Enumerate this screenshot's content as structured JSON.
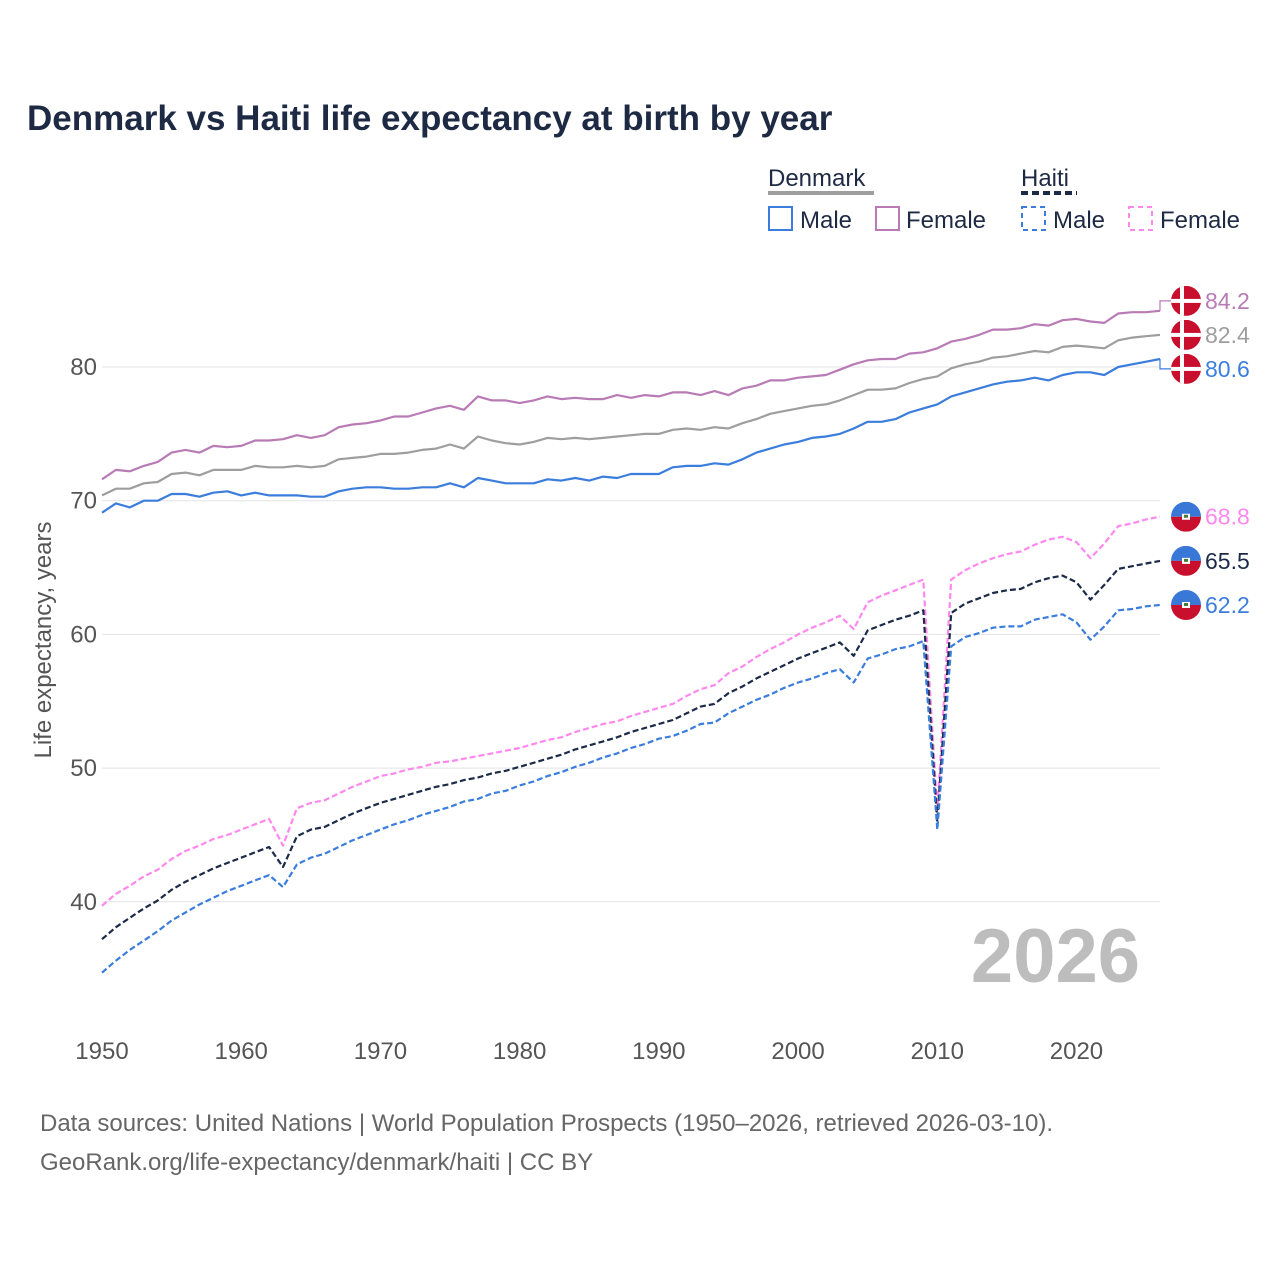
{
  "chart_data": {
    "type": "line",
    "title": "Denmark vs Haiti life expectancy at birth by year",
    "xlabel": "",
    "ylabel": "Life expectancy, years",
    "xlim": [
      1950,
      2026
    ],
    "ylim": [
      33,
      87
    ],
    "x_ticks": [
      1950,
      1960,
      1970,
      1980,
      1990,
      2000,
      2010,
      2020
    ],
    "y_ticks": [
      40,
      50,
      60,
      70,
      80
    ],
    "grid": true,
    "current_year_label": "2026",
    "legend": {
      "placement": "top-right",
      "groups": [
        {
          "name": "Denmark",
          "items": [
            "Male",
            "Female"
          ]
        },
        {
          "name": "Haiti",
          "items": [
            "Male",
            "Female"
          ]
        }
      ]
    },
    "x": [
      1950,
      1951,
      1952,
      1953,
      1954,
      1955,
      1956,
      1957,
      1958,
      1959,
      1960,
      1961,
      1962,
      1963,
      1964,
      1965,
      1966,
      1967,
      1968,
      1969,
      1970,
      1971,
      1972,
      1973,
      1974,
      1975,
      1976,
      1977,
      1978,
      1979,
      1980,
      1981,
      1982,
      1983,
      1984,
      1985,
      1986,
      1987,
      1988,
      1989,
      1990,
      1991,
      1992,
      1993,
      1994,
      1995,
      1996,
      1997,
      1998,
      1999,
      2000,
      2001,
      2002,
      2003,
      2004,
      2005,
      2006,
      2007,
      2008,
      2009,
      2010,
      2011,
      2012,
      2013,
      2014,
      2015,
      2016,
      2017,
      2018,
      2019,
      2020,
      2021,
      2022,
      2023,
      2024,
      2025,
      2026
    ],
    "series": [
      {
        "name": "Denmark Female",
        "country": "Denmark",
        "sex": "Female",
        "color": "#b87bb5",
        "dashed": false,
        "end_label": "84.2",
        "values": [
          71.6,
          72.3,
          72.2,
          72.6,
          72.9,
          73.6,
          73.8,
          73.6,
          74.1,
          74.0,
          74.1,
          74.5,
          74.5,
          74.6,
          74.9,
          74.7,
          74.9,
          75.5,
          75.7,
          75.8,
          76.0,
          76.3,
          76.3,
          76.6,
          76.9,
          77.1,
          76.8,
          77.8,
          77.5,
          77.5,
          77.3,
          77.5,
          77.8,
          77.6,
          77.7,
          77.6,
          77.6,
          77.9,
          77.7,
          77.9,
          77.8,
          78.1,
          78.1,
          77.9,
          78.2,
          77.9,
          78.4,
          78.6,
          79.0,
          79.0,
          79.2,
          79.3,
          79.4,
          79.8,
          80.2,
          80.5,
          80.6,
          80.6,
          81.0,
          81.1,
          81.4,
          81.9,
          82.1,
          82.4,
          82.8,
          82.8,
          82.9,
          83.2,
          83.1,
          83.5,
          83.6,
          83.4,
          83.3,
          84.0,
          84.1,
          84.1,
          84.2
        ]
      },
      {
        "name": "Denmark Total",
        "country": "Denmark",
        "sex": "Total",
        "color": "#9e9e9e",
        "dashed": false,
        "end_label": "82.4",
        "values": [
          70.4,
          70.9,
          70.9,
          71.3,
          71.4,
          72.0,
          72.1,
          71.9,
          72.3,
          72.3,
          72.3,
          72.6,
          72.5,
          72.5,
          72.6,
          72.5,
          72.6,
          73.1,
          73.2,
          73.3,
          73.5,
          73.5,
          73.6,
          73.8,
          73.9,
          74.2,
          73.9,
          74.8,
          74.5,
          74.3,
          74.2,
          74.4,
          74.7,
          74.6,
          74.7,
          74.6,
          74.7,
          74.8,
          74.9,
          75.0,
          75.0,
          75.3,
          75.4,
          75.3,
          75.5,
          75.4,
          75.8,
          76.1,
          76.5,
          76.7,
          76.9,
          77.1,
          77.2,
          77.5,
          77.9,
          78.3,
          78.3,
          78.4,
          78.8,
          79.1,
          79.3,
          79.9,
          80.2,
          80.4,
          80.7,
          80.8,
          81.0,
          81.2,
          81.1,
          81.5,
          81.6,
          81.5,
          81.4,
          82.0,
          82.2,
          82.3,
          82.4
        ]
      },
      {
        "name": "Denmark Male",
        "country": "Denmark",
        "sex": "Male",
        "color": "#3b7ddd",
        "dashed": false,
        "end_label": "80.6",
        "values": [
          69.1,
          69.8,
          69.5,
          70.0,
          70.0,
          70.5,
          70.5,
          70.3,
          70.6,
          70.7,
          70.4,
          70.6,
          70.4,
          70.4,
          70.4,
          70.3,
          70.3,
          70.7,
          70.9,
          71.0,
          71.0,
          70.9,
          70.9,
          71.0,
          71.0,
          71.3,
          71.0,
          71.7,
          71.5,
          71.3,
          71.3,
          71.3,
          71.6,
          71.5,
          71.7,
          71.5,
          71.8,
          71.7,
          72.0,
          72.0,
          72.0,
          72.5,
          72.6,
          72.6,
          72.8,
          72.7,
          73.1,
          73.6,
          73.9,
          74.2,
          74.4,
          74.7,
          74.8,
          75.0,
          75.4,
          75.9,
          75.9,
          76.1,
          76.6,
          76.9,
          77.2,
          77.8,
          78.1,
          78.4,
          78.7,
          78.9,
          79.0,
          79.2,
          79.0,
          79.4,
          79.6,
          79.6,
          79.4,
          80.0,
          80.2,
          80.4,
          80.6
        ]
      },
      {
        "name": "Haiti Female",
        "country": "Haiti",
        "sex": "Female",
        "color": "#ff88ee",
        "dashed": true,
        "end_label": "68.8",
        "values": [
          39.7,
          40.6,
          41.2,
          41.9,
          42.4,
          43.2,
          43.8,
          44.2,
          44.7,
          45.0,
          45.4,
          45.8,
          46.2,
          44.2,
          47.0,
          47.4,
          47.6,
          48.1,
          48.6,
          49.0,
          49.4,
          49.6,
          49.9,
          50.1,
          50.4,
          50.5,
          50.7,
          50.9,
          51.1,
          51.3,
          51.5,
          51.8,
          52.1,
          52.3,
          52.7,
          53.0,
          53.3,
          53.5,
          53.9,
          54.2,
          54.5,
          54.8,
          55.4,
          55.9,
          56.2,
          57.1,
          57.6,
          58.3,
          58.9,
          59.4,
          60.0,
          60.5,
          60.9,
          61.4,
          60.4,
          62.4,
          62.9,
          63.3,
          63.7,
          64.1,
          46.8,
          64.1,
          64.8,
          65.3,
          65.7,
          66.0,
          66.2,
          66.7,
          67.1,
          67.3,
          66.9,
          65.7,
          66.8,
          68.1,
          68.3,
          68.6,
          68.8
        ]
      },
      {
        "name": "Haiti Total",
        "country": "Haiti",
        "sex": "Total",
        "color": "#1b2a47",
        "dashed": true,
        "end_label": "65.5",
        "values": [
          37.2,
          38.1,
          38.8,
          39.5,
          40.1,
          40.9,
          41.5,
          42.0,
          42.5,
          42.9,
          43.3,
          43.7,
          44.1,
          42.6,
          44.9,
          45.4,
          45.6,
          46.1,
          46.6,
          47.0,
          47.4,
          47.7,
          48.0,
          48.3,
          48.6,
          48.8,
          49.1,
          49.3,
          49.6,
          49.8,
          50.1,
          50.4,
          50.7,
          51.0,
          51.4,
          51.7,
          52.0,
          52.3,
          52.7,
          53.0,
          53.3,
          53.6,
          54.1,
          54.6,
          54.8,
          55.6,
          56.1,
          56.7,
          57.2,
          57.7,
          58.2,
          58.6,
          59.0,
          59.4,
          58.4,
          60.3,
          60.7,
          61.1,
          61.4,
          61.8,
          46.0,
          61.6,
          62.3,
          62.7,
          63.1,
          63.3,
          63.4,
          63.9,
          64.2,
          64.4,
          63.9,
          62.6,
          63.7,
          64.9,
          65.1,
          65.3,
          65.5
        ]
      },
      {
        "name": "Haiti Male",
        "country": "Haiti",
        "sex": "Male",
        "color": "#3b7ddd",
        "dashed": true,
        "end_label": "62.2",
        "values": [
          34.7,
          35.6,
          36.4,
          37.1,
          37.8,
          38.6,
          39.2,
          39.8,
          40.3,
          40.8,
          41.2,
          41.6,
          42.0,
          41.1,
          42.8,
          43.3,
          43.6,
          44.1,
          44.6,
          45.0,
          45.4,
          45.8,
          46.1,
          46.5,
          46.8,
          47.1,
          47.5,
          47.7,
          48.1,
          48.3,
          48.7,
          49.0,
          49.4,
          49.7,
          50.1,
          50.4,
          50.8,
          51.1,
          51.5,
          51.8,
          52.2,
          52.4,
          52.8,
          53.3,
          53.4,
          54.1,
          54.6,
          55.1,
          55.5,
          56.0,
          56.4,
          56.7,
          57.1,
          57.4,
          56.4,
          58.2,
          58.5,
          58.9,
          59.1,
          59.5,
          45.4,
          59.1,
          59.8,
          60.1,
          60.5,
          60.6,
          60.6,
          61.1,
          61.3,
          61.5,
          60.9,
          59.6,
          60.6,
          61.8,
          61.9,
          62.1,
          62.2
        ]
      }
    ]
  },
  "footer": {
    "line1": "Data sources: United Nations | World Population Prospects (1950–2026, retrieved 2026-03-10).",
    "line2": "GeoRank.org/life-expectancy/denmark/haiti | CC BY"
  }
}
